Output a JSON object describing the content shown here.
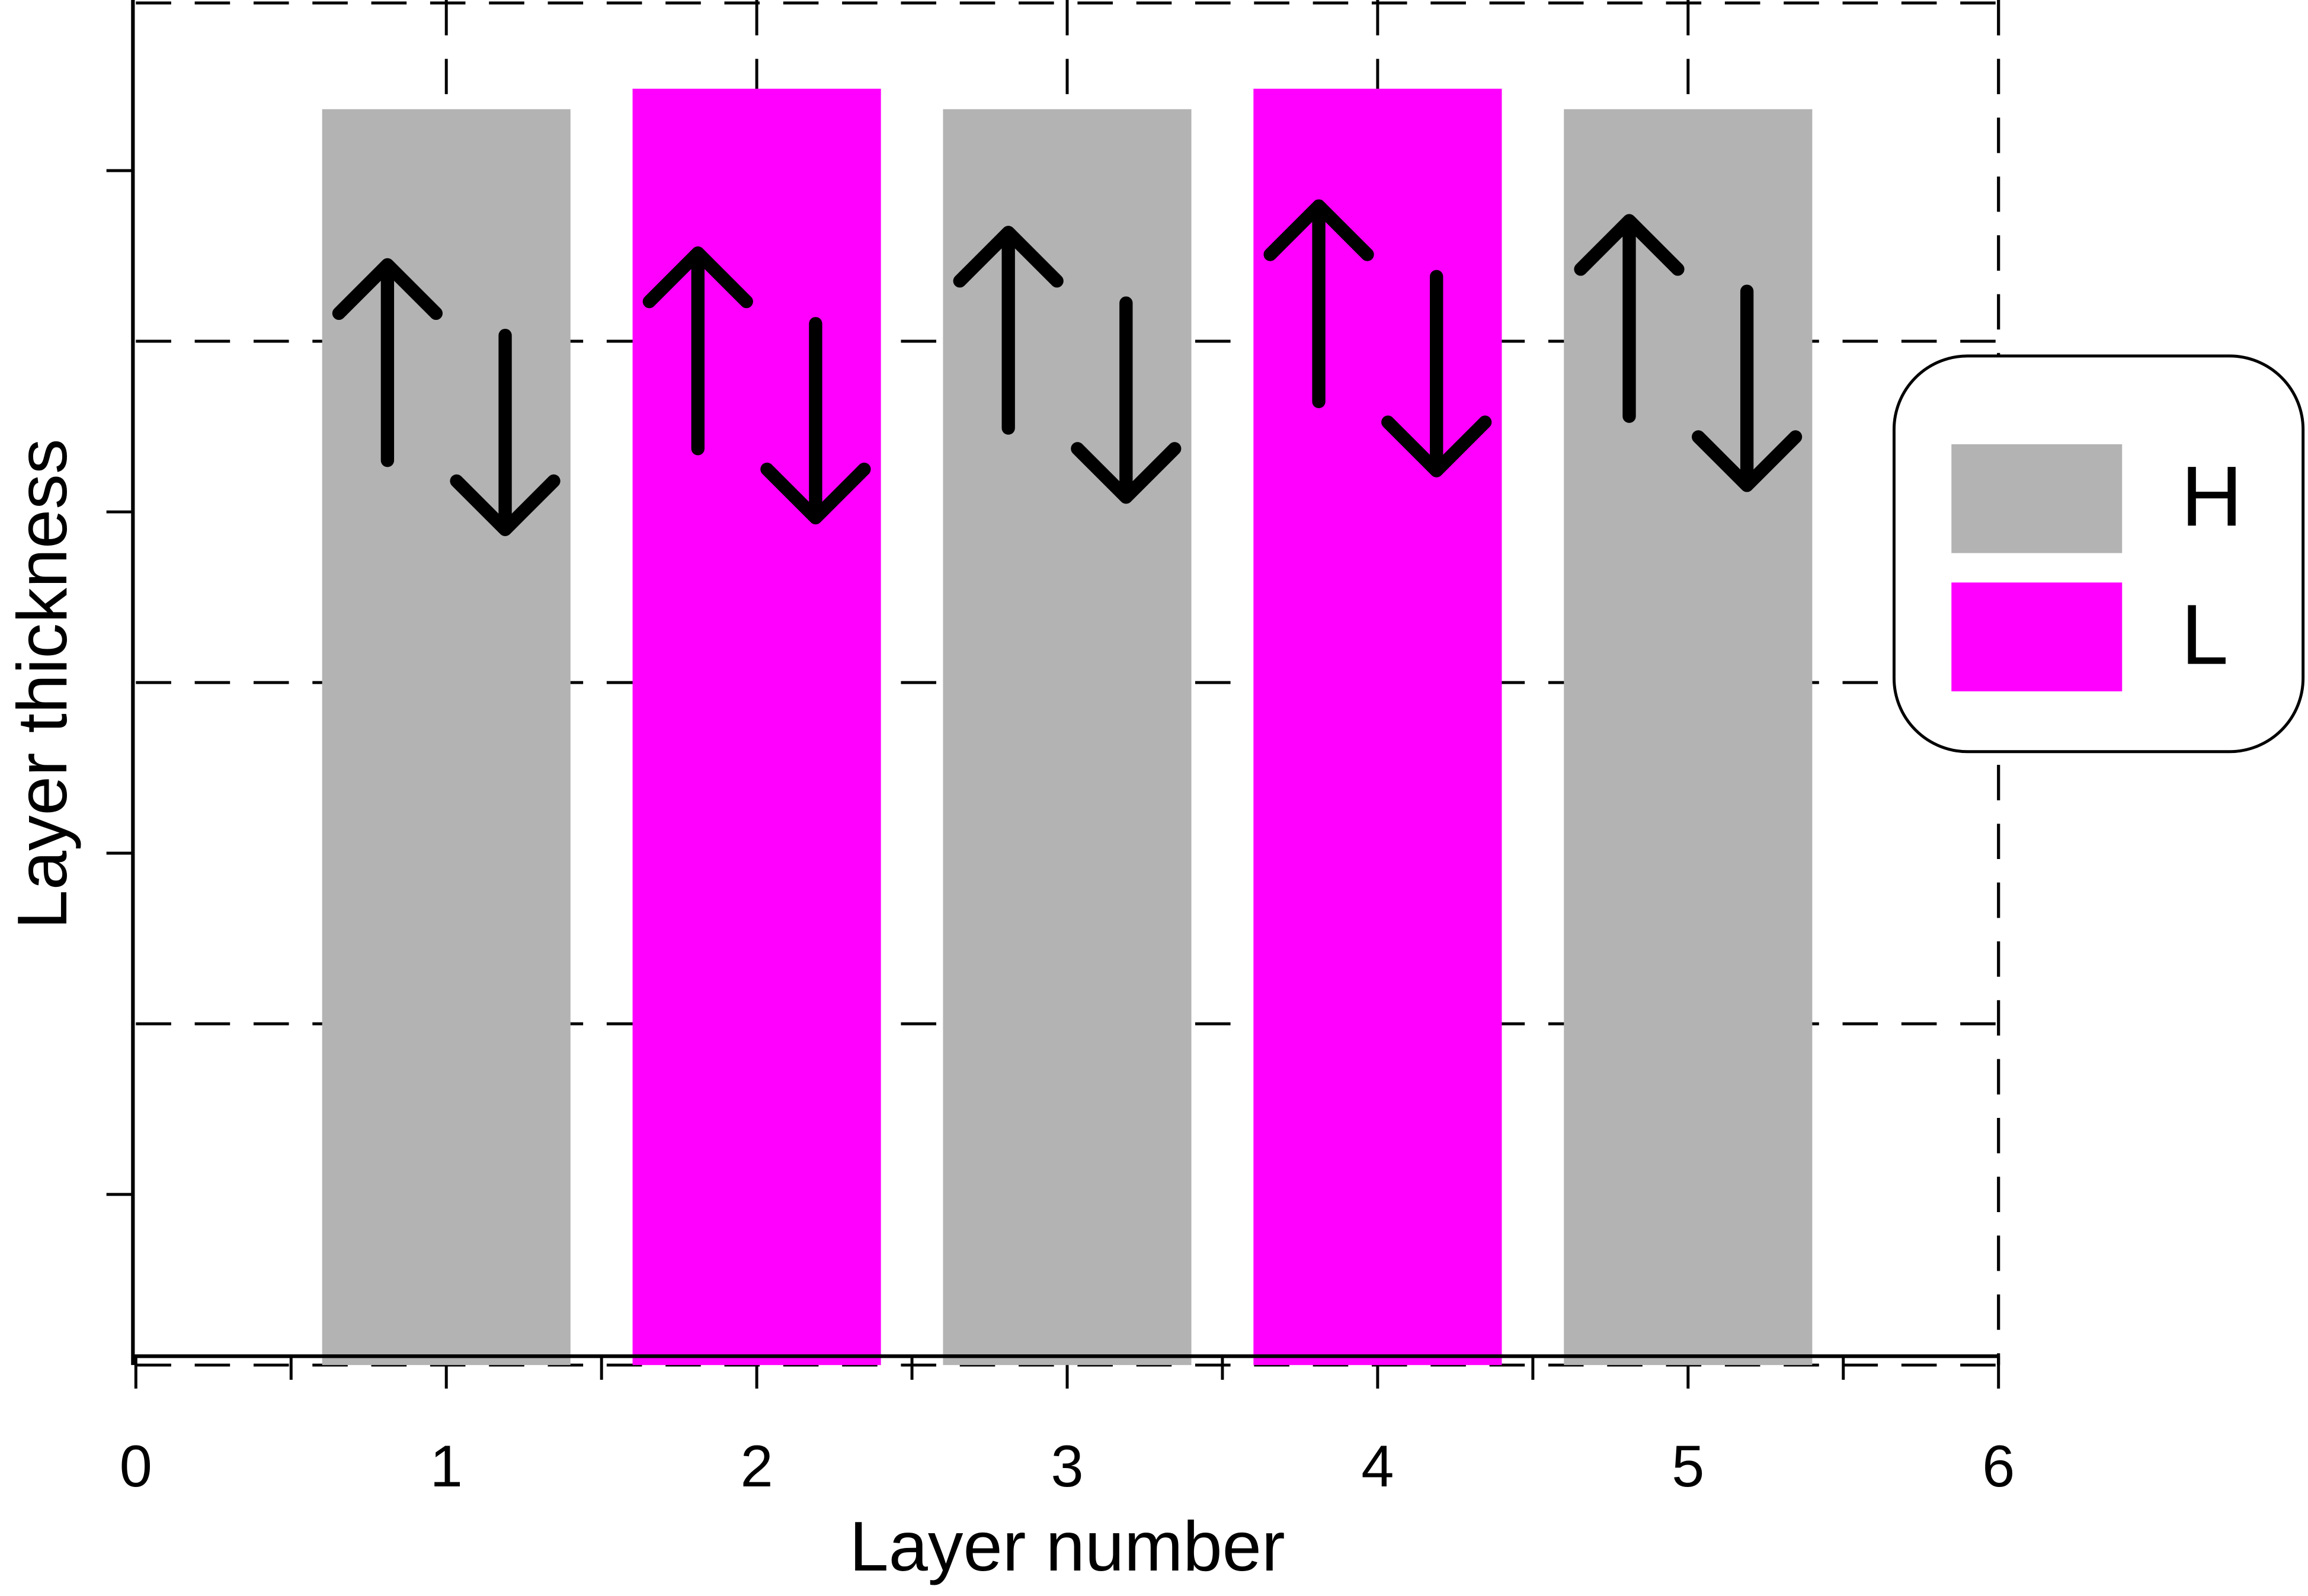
{
  "chart_data": {
    "type": "bar",
    "x_label": "Layer number",
    "y_label": "Layer thickness",
    "series": [
      {
        "name": "H",
        "color": "#b3b3b3",
        "x": [
          1,
          3,
          5
        ],
        "values": [
          3.68,
          3.68,
          3.68
        ]
      },
      {
        "name": "L",
        "color": "#ff00ff",
        "x": [
          2,
          4
        ],
        "values": [
          3.74,
          3.74
        ]
      }
    ],
    "xlim": [
      0,
      6
    ],
    "xticks": [
      0,
      1,
      2,
      3,
      4,
      5,
      6
    ],
    "ylim": [
      0,
      4
    ],
    "ygrid": [
      0,
      1,
      2,
      3
    ],
    "bar_width": 0.8,
    "grid": true,
    "legend": "right"
  }
}
